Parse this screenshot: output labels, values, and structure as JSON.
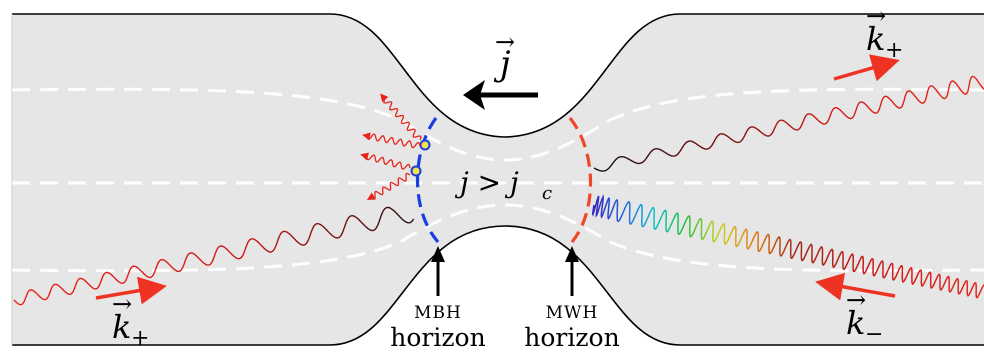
{
  "labels": {
    "k_plus_right": {
      "base": "k",
      "sub": "+"
    },
    "k_plus_left": {
      "base": "k",
      "sub": "+"
    },
    "k_minus": {
      "base": "k",
      "sub": "−"
    },
    "current": "j",
    "condition": "j > j",
    "condition_sub": "c",
    "mbh_line1": "MBH",
    "mbh_line2": "horizon",
    "mwh_line1": "MWH",
    "mwh_line2": "horizon"
  },
  "colors": {
    "channel_fill": "#e6e6e6",
    "wall": "#000000",
    "streamline": "#ffffff",
    "mbh_horizon": "#1a3fe0",
    "mwh_horizon": "#f0462a",
    "wave": "#e8231a",
    "arrow_red": "#ee3322",
    "emit_dot": "#f5e14a"
  },
  "icons": [
    "arrow-icon",
    "emission-point-icon"
  ]
}
